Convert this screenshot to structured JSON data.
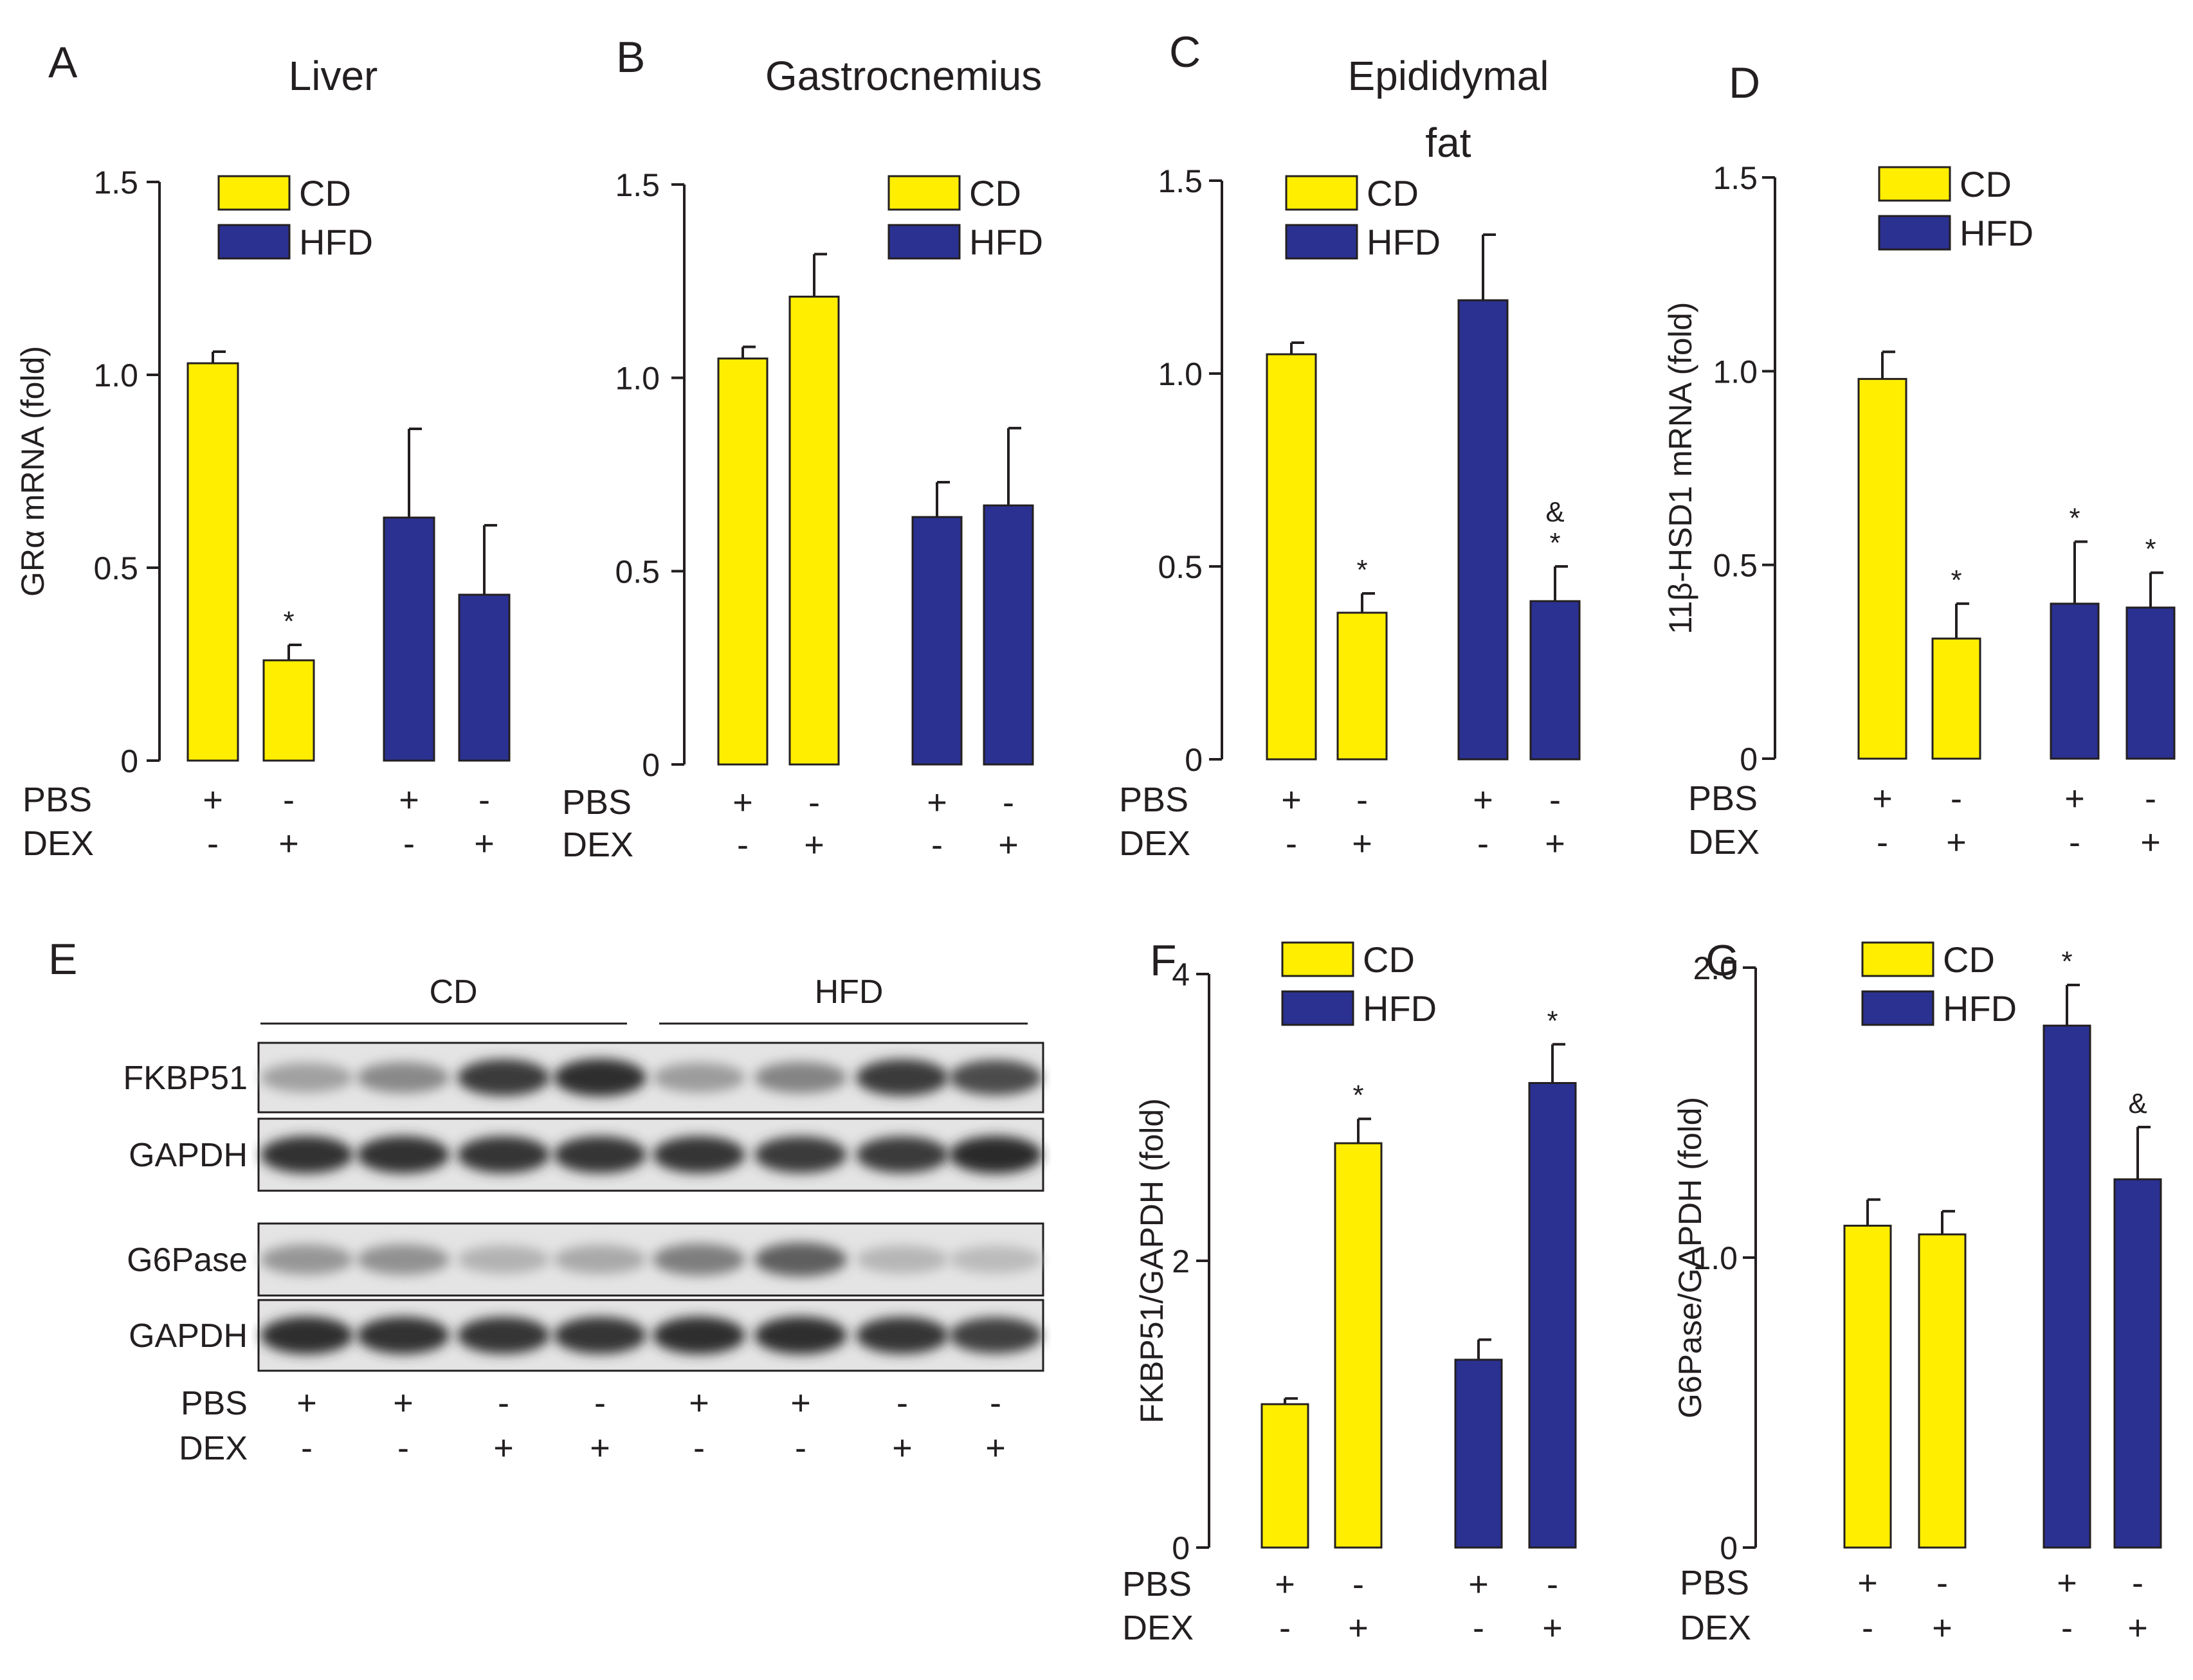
{
  "colors": {
    "cd": "#ffee00",
    "hfd": "#2b3191",
    "axis": "#231f20",
    "bar_stroke": "#231f20"
  },
  "legend": {
    "cd_label": "CD",
    "hfd_label": "HFD"
  },
  "treatment": {
    "row_labels": [
      "PBS",
      "DEX"
    ],
    "pbs_signs": [
      "+",
      "-",
      "+",
      "-"
    ],
    "dex_signs": [
      "-",
      "+",
      "-",
      "+"
    ]
  },
  "chart_data": [
    {
      "panel": "A",
      "type": "bar",
      "title": "Liver",
      "ylabel": "GRα mRNA  (fold)",
      "ylim": [
        0,
        1.5
      ],
      "yticks": [
        "0",
        "0.5",
        "1.0",
        "1.5"
      ],
      "categories": [
        "CD PBS",
        "CD DEX",
        "HFD PBS",
        "HFD DEX"
      ],
      "groups": [
        "cd",
        "cd",
        "hfd",
        "hfd"
      ],
      "values": [
        1.03,
        0.26,
        0.63,
        0.43
      ],
      "errors": [
        0.03,
        0.04,
        0.23,
        0.18
      ],
      "annotations": [
        "",
        "*",
        "",
        ""
      ],
      "legend": "top-right"
    },
    {
      "panel": "B",
      "type": "bar",
      "title": "Gastrocnemius",
      "ylabel": "",
      "ylim": [
        0,
        1.5
      ],
      "yticks": [
        "0",
        "0.5",
        "1.0",
        "1.5"
      ],
      "categories": [
        "CD PBS",
        "CD DEX",
        "HFD PBS",
        "HFD DEX"
      ],
      "groups": [
        "cd",
        "cd",
        "hfd",
        "hfd"
      ],
      "values": [
        1.05,
        1.21,
        0.64,
        0.67
      ],
      "errors": [
        0.03,
        0.11,
        0.09,
        0.2
      ],
      "annotations": [
        "",
        "",
        "",
        ""
      ],
      "legend": "top-right"
    },
    {
      "panel": "C",
      "type": "bar",
      "title": "Epididymal fat",
      "ylabel": "",
      "ylim": [
        0,
        1.5
      ],
      "yticks": [
        "0",
        "0.5",
        "1.0",
        "1.5"
      ],
      "categories": [
        "CD PBS",
        "CD DEX",
        "HFD PBS",
        "HFD DEX"
      ],
      "groups": [
        "cd",
        "cd",
        "hfd",
        "hfd"
      ],
      "values": [
        1.05,
        0.38,
        1.19,
        0.41
      ],
      "errors": [
        0.03,
        0.05,
        0.17,
        0.09
      ],
      "annotations": [
        "",
        "*",
        "",
        "&\n*"
      ],
      "legend": "top-right"
    },
    {
      "panel": "D",
      "type": "bar",
      "title": "",
      "ylabel": "11β-HSD1 mRNA  (fold)",
      "ylim": [
        0,
        1.5
      ],
      "yticks": [
        "0",
        "0.5",
        "1.0",
        "1.5"
      ],
      "categories": [
        "CD PBS",
        "CD DEX",
        "HFD PBS",
        "HFD DEX"
      ],
      "groups": [
        "cd",
        "cd",
        "hfd",
        "hfd"
      ],
      "values": [
        0.98,
        0.31,
        0.4,
        0.39
      ],
      "errors": [
        0.07,
        0.09,
        0.16,
        0.09
      ],
      "annotations": [
        "",
        "*",
        "*",
        "*"
      ],
      "legend": "top-left"
    },
    {
      "panel": "F",
      "type": "bar",
      "title": "",
      "ylabel": "FKBP51/GAPDH (fold)",
      "ylim": [
        0,
        4
      ],
      "yticks": [
        "0",
        "2",
        "4"
      ],
      "categories": [
        "CD PBS",
        "CD DEX",
        "HFD PBS",
        "HFD DEX"
      ],
      "groups": [
        "cd",
        "cd",
        "hfd",
        "hfd"
      ],
      "values": [
        1.0,
        2.82,
        1.31,
        3.24
      ],
      "errors": [
        0.04,
        0.17,
        0.14,
        0.27
      ],
      "annotations": [
        "",
        "*",
        "",
        "*"
      ],
      "legend": "top-right"
    },
    {
      "panel": "G",
      "type": "bar",
      "title": "",
      "ylabel": "G6Pase/GAPDH (fold)",
      "ylim": [
        0,
        2.0
      ],
      "yticks": [
        "0",
        "1.0",
        "2.0"
      ],
      "categories": [
        "CD PBS",
        "CD DEX",
        "HFD PBS",
        "HFD DEX"
      ],
      "groups": [
        "cd",
        "cd",
        "hfd",
        "hfd"
      ],
      "values": [
        1.11,
        1.08,
        1.8,
        1.27
      ],
      "errors": [
        0.09,
        0.08,
        0.14,
        0.18
      ],
      "annotations": [
        "",
        "",
        "*",
        "&"
      ],
      "legend": "top-left"
    }
  ],
  "blot": {
    "panel": "E",
    "group_labels": [
      "CD",
      "HFD"
    ],
    "rows": [
      {
        "label": "FKBP51",
        "intensity": [
          0.3,
          0.42,
          0.85,
          0.92,
          0.32,
          0.45,
          0.85,
          0.75
        ]
      },
      {
        "label": "GAPDH",
        "intensity": [
          0.9,
          0.9,
          0.88,
          0.88,
          0.88,
          0.85,
          0.85,
          0.93
        ]
      },
      {
        "label": "G6Pase",
        "intensity": [
          0.35,
          0.38,
          0.2,
          0.25,
          0.48,
          0.65,
          0.18,
          0.15
        ]
      },
      {
        "label": "GAPDH",
        "intensity": [
          0.92,
          0.9,
          0.88,
          0.88,
          0.92,
          0.92,
          0.88,
          0.82
        ]
      }
    ],
    "pbs_signs": [
      "+",
      "+",
      "-",
      "-",
      "+",
      "+",
      "-",
      "-"
    ],
    "dex_signs": [
      "-",
      "-",
      "+",
      "+",
      "-",
      "-",
      "+",
      "+"
    ]
  }
}
